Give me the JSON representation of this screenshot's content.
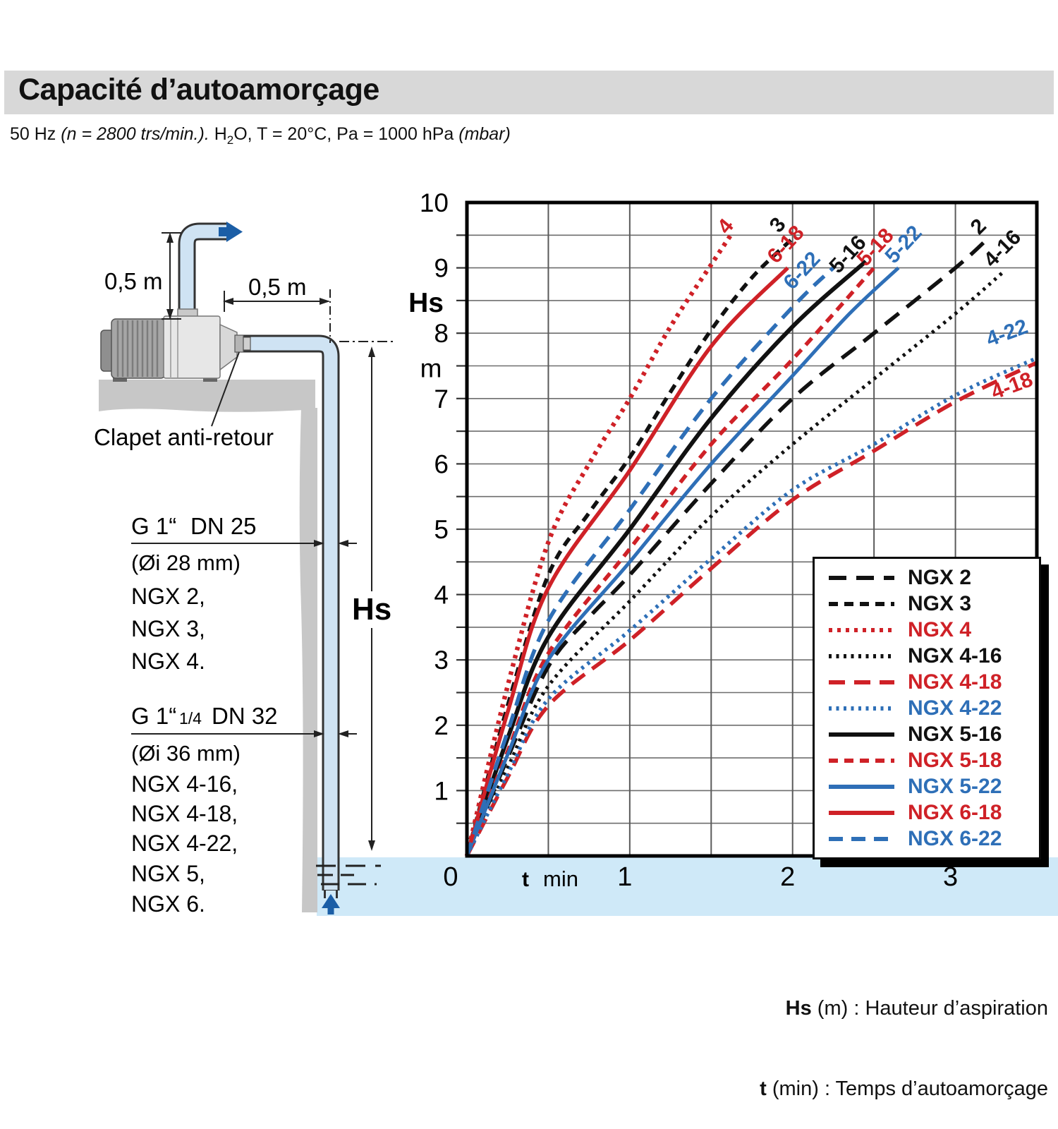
{
  "header": {
    "title": "Capacité d’autoamorçage",
    "sub_prefix": "50 Hz ",
    "sub_italic1": "(n = 2800 trs/min.).",
    "sub_mid_a": " H",
    "sub_sub": "2",
    "sub_mid_b": "O, T = 20°C, Pa = 1000 hPa ",
    "sub_italic2": "(mbar)"
  },
  "diagram": {
    "dim_discharge": "0,5 m",
    "dim_suction": "0,5 m",
    "valve_label": "Clapet anti-retour",
    "hs_dim_label": "Hs",
    "pipe1": {
      "size_g": "G 1“",
      "size_dn": "DN 25",
      "inner": "(Øi 28 mm)",
      "models": [
        "NGX 2,",
        "NGX 3,",
        "NGX 4."
      ]
    },
    "pipe2": {
      "size_g": "G 1“",
      "size_frac": "1/4",
      "size_dn": "DN 32",
      "inner": "(Øi 36 mm)",
      "models": [
        "NGX 4-16,",
        "NGX 4-18,",
        "NGX 4-22,",
        "NGX 5,",
        "NGX 6."
      ]
    }
  },
  "captions": {
    "hs_bold": "Hs",
    "hs_rest": " (m) : Hauteur d’aspiration",
    "t_bold": "t",
    "t_rest": " (min) : Temps d’autoamorçage"
  },
  "colors": {
    "red": "#cf2127",
    "blue": "#2e6fb7",
    "black": "#111111",
    "water": "#cfe9f8",
    "wall_gray": "#c7c7c7",
    "title_bar": "#d8d8d8",
    "flow_arrow": "#1b5ea6"
  },
  "chart_data": {
    "type": "line",
    "title": "",
    "xlabel_bold": "t",
    "xlabel_unit": "min",
    "ylabel_main": "Hs",
    "ylabel_unit": "m",
    "xlim": [
      0,
      3.5
    ],
    "ylim": [
      0,
      10
    ],
    "x_ticks": [
      0,
      1,
      2,
      3
    ],
    "y_ticks": [
      1,
      2,
      3,
      4,
      5,
      6,
      7,
      8,
      9,
      10
    ],
    "grid_step": 0.5,
    "grid": true,
    "legend_position": "lower right",
    "legend_order": [
      "NGX 2",
      "NGX 3",
      "NGX 4",
      "NGX 4-16",
      "NGX 4-18",
      "NGX 4-22",
      "NGX 5-16",
      "NGX 5-18",
      "NGX 5-22",
      "NGX 6-18",
      "NGX 6-22"
    ],
    "series": [
      {
        "name": "NGX 2",
        "color": "#111111",
        "dash": "25 14",
        "width": 5.5,
        "label": {
          "text": "2",
          "t": 3.17,
          "hs": 9.56,
          "angle": -45
        },
        "points": [
          [
            0,
            0
          ],
          [
            0.25,
            1.5
          ],
          [
            0.5,
            2.9
          ],
          [
            0.75,
            3.65
          ],
          [
            1,
            4.3
          ],
          [
            1.5,
            5.7
          ],
          [
            2,
            7.0
          ],
          [
            2.5,
            8.0
          ],
          [
            3,
            9.0
          ],
          [
            3.2,
            9.45
          ]
        ]
      },
      {
        "name": "NGX 3",
        "color": "#111111",
        "dash": "13 9",
        "width": 5.5,
        "label": {
          "text": "3",
          "t": 1.94,
          "hs": 9.59,
          "angle": -50
        },
        "points": [
          [
            0,
            0
          ],
          [
            0.25,
            2.3
          ],
          [
            0.5,
            4.3
          ],
          [
            0.75,
            5.25
          ],
          [
            1,
            6.1
          ],
          [
            1.25,
            7.1
          ],
          [
            1.5,
            8.05
          ],
          [
            1.75,
            8.85
          ],
          [
            2,
            9.45
          ]
        ]
      },
      {
        "name": "NGX 4",
        "color": "#cf2127",
        "dash": "5 7",
        "width": 6.5,
        "label": {
          "text": "4",
          "t": 1.62,
          "hs": 9.57,
          "angle": -50
        },
        "points": [
          [
            0,
            0
          ],
          [
            0.25,
            2.6
          ],
          [
            0.5,
            4.8
          ],
          [
            0.75,
            6.0
          ],
          [
            1,
            7.0
          ],
          [
            1.25,
            8.1
          ],
          [
            1.5,
            9.05
          ],
          [
            1.62,
            9.5
          ]
        ]
      },
      {
        "name": "NGX 4-16",
        "color": "#111111",
        "dash": "4 6.5",
        "width": 5,
        "label": {
          "text": "4-16",
          "t": 3.32,
          "hs": 9.22,
          "angle": -45
        },
        "points": [
          [
            0,
            0
          ],
          [
            0.25,
            1.35
          ],
          [
            0.5,
            2.6
          ],
          [
            1,
            3.9
          ],
          [
            1.5,
            5.2
          ],
          [
            2,
            6.3
          ],
          [
            2.5,
            7.3
          ],
          [
            3,
            8.3
          ],
          [
            3.3,
            8.95
          ]
        ]
      },
      {
        "name": "NGX 4-18",
        "color": "#cf2127",
        "dash": "23 13",
        "width": 5.5,
        "label": {
          "text": "4-18",
          "t": 3.36,
          "hs": 7.1,
          "angle": -20
        },
        "points": [
          [
            0,
            0
          ],
          [
            0.25,
            1.2
          ],
          [
            0.5,
            2.3
          ],
          [
            1,
            3.3
          ],
          [
            1.5,
            4.4
          ],
          [
            2,
            5.45
          ],
          [
            2.5,
            6.2
          ],
          [
            3,
            6.95
          ],
          [
            3.5,
            7.55
          ]
        ]
      },
      {
        "name": "NGX 4-22",
        "color": "#2e6fb7",
        "dash": "4 6.5",
        "width": 5.5,
        "label": {
          "text": "4-22",
          "t": 3.33,
          "hs": 7.9,
          "angle": -20
        },
        "points": [
          [
            0,
            0
          ],
          [
            0.25,
            1.25
          ],
          [
            0.5,
            2.4
          ],
          [
            1,
            3.45
          ],
          [
            1.5,
            4.55
          ],
          [
            2,
            5.6
          ],
          [
            2.5,
            6.3
          ],
          [
            3,
            7.05
          ],
          [
            3.5,
            7.62
          ]
        ]
      },
      {
        "name": "NGX 5-16",
        "color": "#111111",
        "dash": "",
        "width": 6,
        "label": {
          "text": "5-16",
          "t": 2.37,
          "hs": 9.14,
          "angle": -47
        },
        "points": [
          [
            0,
            0
          ],
          [
            0.25,
            1.8
          ],
          [
            0.5,
            3.35
          ],
          [
            1,
            5.0
          ],
          [
            1.5,
            6.7
          ],
          [
            2,
            8.1
          ],
          [
            2.45,
            9.1
          ]
        ]
      },
      {
        "name": "NGX 5-18",
        "color": "#cf2127",
        "dash": "13 9",
        "width": 5.5,
        "label": {
          "text": "5-18",
          "t": 2.54,
          "hs": 9.24,
          "angle": -47
        },
        "points": [
          [
            0,
            0
          ],
          [
            0.25,
            1.6
          ],
          [
            0.5,
            3.1
          ],
          [
            1,
            4.7
          ],
          [
            1.5,
            6.3
          ],
          [
            2,
            7.6
          ],
          [
            2.5,
            9.0
          ]
        ]
      },
      {
        "name": "NGX 5-22",
        "color": "#2e6fb7",
        "dash": "",
        "width": 5,
        "label": {
          "text": "5-22",
          "t": 2.71,
          "hs": 9.29,
          "angle": -47
        },
        "points": [
          [
            0,
            0
          ],
          [
            0.25,
            1.55
          ],
          [
            0.5,
            3.0
          ],
          [
            1,
            4.5
          ],
          [
            1.5,
            6.0
          ],
          [
            2,
            7.35
          ],
          [
            2.35,
            8.3
          ],
          [
            2.65,
            9.0
          ]
        ]
      },
      {
        "name": "NGX 6-18",
        "color": "#cf2127",
        "dash": "",
        "width": 5.5,
        "label": {
          "text": "6-18",
          "t": 1.99,
          "hs": 9.29,
          "angle": -47
        },
        "points": [
          [
            0,
            0
          ],
          [
            0.25,
            2.2
          ],
          [
            0.5,
            4.1
          ],
          [
            1,
            5.9
          ],
          [
            1.5,
            7.8
          ],
          [
            1.97,
            9.0
          ]
        ]
      },
      {
        "name": "NGX 6-22",
        "color": "#2e6fb7",
        "dash": "20 12",
        "width": 5.5,
        "label": {
          "text": "6-22",
          "t": 2.09,
          "hs": 8.89,
          "angle": -47
        },
        "points": [
          [
            0,
            0
          ],
          [
            0.25,
            1.9
          ],
          [
            0.5,
            3.6
          ],
          [
            1,
            5.3
          ],
          [
            1.5,
            7.0
          ],
          [
            2,
            8.4
          ],
          [
            2.25,
            9.0
          ]
        ]
      }
    ]
  }
}
